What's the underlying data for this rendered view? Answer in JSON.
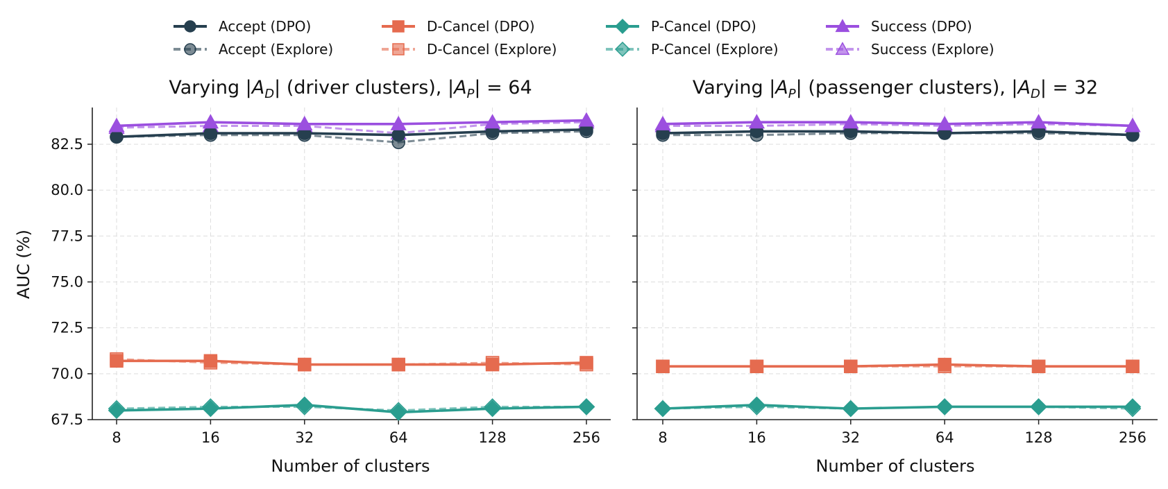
{
  "colors": {
    "accept": "#263f4f",
    "dcancel": "#e56b4f",
    "pcancel": "#2a9d8f",
    "success": "#9b4fdf",
    "grid": "#dddddd"
  },
  "legend": [
    {
      "label": "Accept (DPO)",
      "color": "#263f4f",
      "marker": "circle",
      "dashed": false
    },
    {
      "label": "Accept (Explore)",
      "color": "#263f4f",
      "marker": "circle",
      "dashed": true
    },
    {
      "label": "D-Cancel (DPO)",
      "color": "#e56b4f",
      "marker": "square",
      "dashed": false
    },
    {
      "label": "D-Cancel (Explore)",
      "color": "#e56b4f",
      "marker": "square",
      "dashed": true
    },
    {
      "label": "P-Cancel (DPO)",
      "color": "#2a9d8f",
      "marker": "diamond",
      "dashed": false
    },
    {
      "label": "P-Cancel (Explore)",
      "color": "#2a9d8f",
      "marker": "diamond",
      "dashed": true
    },
    {
      "label": "Success (DPO)",
      "color": "#9b4fdf",
      "marker": "triangle",
      "dashed": false
    },
    {
      "label": "Success (Explore)",
      "color": "#9b4fdf",
      "marker": "triangle",
      "dashed": true
    }
  ],
  "chart_data": [
    {
      "type": "line",
      "title": "Varying |A_D| (driver clusters), |A_P| = 64",
      "xlabel": "Number of clusters",
      "ylabel": "AUC (%)",
      "x": [
        "8",
        "16",
        "32",
        "64",
        "128",
        "256"
      ],
      "ylim": [
        67.5,
        84.5
      ],
      "yticks": [
        "67.5",
        "70.0",
        "72.5",
        "75.0",
        "77.5",
        "80.0",
        "82.5"
      ],
      "grid": true,
      "legend_position": "top-center",
      "series": [
        {
          "name": "Accept (DPO)",
          "color": "#263f4f",
          "marker": "circle",
          "dashed": false,
          "values": [
            82.9,
            83.1,
            83.1,
            83.0,
            83.2,
            83.3
          ]
        },
        {
          "name": "Accept (Explore)",
          "color": "#263f4f",
          "marker": "circle",
          "dashed": true,
          "values": [
            82.9,
            83.0,
            83.0,
            82.6,
            83.1,
            83.2
          ]
        },
        {
          "name": "D-Cancel (DPO)",
          "color": "#e56b4f",
          "marker": "square",
          "dashed": false,
          "values": [
            70.7,
            70.7,
            70.5,
            70.5,
            70.5,
            70.6
          ]
        },
        {
          "name": "D-Cancel (Explore)",
          "color": "#e56b4f",
          "marker": "square",
          "dashed": true,
          "values": [
            70.8,
            70.6,
            70.5,
            70.5,
            70.6,
            70.5
          ]
        },
        {
          "name": "P-Cancel (DPO)",
          "color": "#2a9d8f",
          "marker": "diamond",
          "dashed": false,
          "values": [
            68.0,
            68.1,
            68.3,
            67.9,
            68.1,
            68.2
          ]
        },
        {
          "name": "P-Cancel (Explore)",
          "color": "#2a9d8f",
          "marker": "diamond",
          "dashed": true,
          "values": [
            68.1,
            68.2,
            68.2,
            68.0,
            68.2,
            68.2
          ]
        },
        {
          "name": "Success (DPO)",
          "color": "#9b4fdf",
          "marker": "triangle",
          "dashed": false,
          "values": [
            83.5,
            83.7,
            83.6,
            83.6,
            83.7,
            83.8
          ]
        },
        {
          "name": "Success (Explore)",
          "color": "#9b4fdf",
          "marker": "triangle",
          "dashed": true,
          "values": [
            83.4,
            83.5,
            83.5,
            83.1,
            83.6,
            83.7
          ]
        }
      ]
    },
    {
      "type": "line",
      "title": "Varying |A_P| (passenger clusters), |A_D| = 32",
      "xlabel": "Number of clusters",
      "ylabel": "",
      "x": [
        "8",
        "16",
        "32",
        "64",
        "128",
        "256"
      ],
      "ylim": [
        67.5,
        84.5
      ],
      "grid": true,
      "series": [
        {
          "name": "Accept (DPO)",
          "color": "#263f4f",
          "marker": "circle",
          "dashed": false,
          "values": [
            83.1,
            83.2,
            83.2,
            83.1,
            83.2,
            83.0
          ]
        },
        {
          "name": "Accept (Explore)",
          "color": "#263f4f",
          "marker": "circle",
          "dashed": true,
          "values": [
            83.0,
            83.0,
            83.1,
            83.1,
            83.1,
            83.0
          ]
        },
        {
          "name": "D-Cancel (DPO)",
          "color": "#e56b4f",
          "marker": "square",
          "dashed": false,
          "values": [
            70.4,
            70.4,
            70.4,
            70.5,
            70.4,
            70.4
          ]
        },
        {
          "name": "D-Cancel (Explore)",
          "color": "#e56b4f",
          "marker": "square",
          "dashed": true,
          "values": [
            70.4,
            70.4,
            70.4,
            70.4,
            70.4,
            70.4
          ]
        },
        {
          "name": "P-Cancel (DPO)",
          "color": "#2a9d8f",
          "marker": "diamond",
          "dashed": false,
          "values": [
            68.1,
            68.3,
            68.1,
            68.2,
            68.2,
            68.2
          ]
        },
        {
          "name": "P-Cancel (Explore)",
          "color": "#2a9d8f",
          "marker": "diamond",
          "dashed": true,
          "values": [
            68.1,
            68.2,
            68.1,
            68.2,
            68.2,
            68.1
          ]
        },
        {
          "name": "Success (DPO)",
          "color": "#9b4fdf",
          "marker": "triangle",
          "dashed": false,
          "values": [
            83.6,
            83.7,
            83.7,
            83.6,
            83.7,
            83.5
          ]
        },
        {
          "name": "Success (Explore)",
          "color": "#9b4fdf",
          "marker": "triangle",
          "dashed": true,
          "values": [
            83.5,
            83.5,
            83.6,
            83.5,
            83.6,
            83.5
          ]
        }
      ]
    }
  ]
}
